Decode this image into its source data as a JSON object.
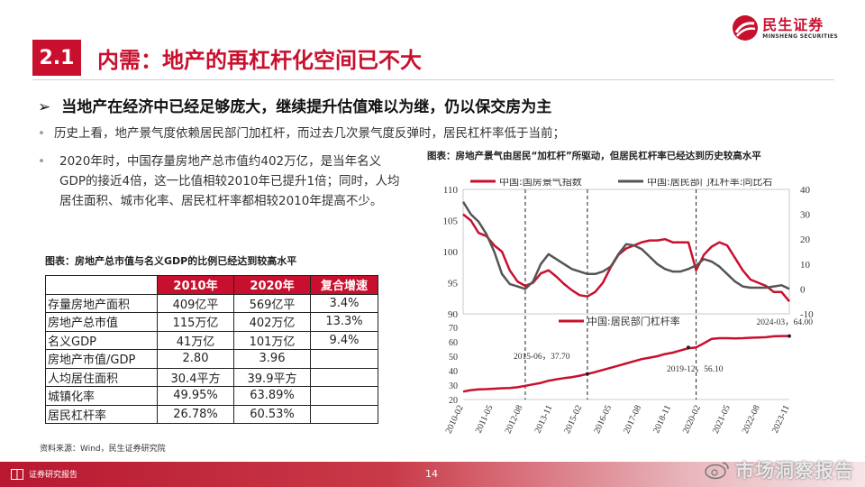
{
  "brand": {
    "name_cn": "民生证券",
    "name_en": "MINSHENG SECURITIES",
    "color": "#c8102e"
  },
  "section": {
    "number": "2.1",
    "title": "内需：地产的再杠杆化空间已不大"
  },
  "lead": {
    "arrow": "➢",
    "text": "当地产在经济中已经足够庞大，继续提升估值难以为继，仍以保交房为主"
  },
  "bullets": [
    {
      "mark": "•",
      "text": "历史上看，地产景气度依赖居民部门加杠杆，而过去几次景气度反弹时，居民杠杆率低于当前；"
    },
    {
      "mark": "•",
      "text": "2020年时，中国存量房地产总市值约402万亿，是当年名义GDP的接近4倍，这一比值相较2010年已提升1倍；同时，人均居住面积、城市化率、居民杠杆率都相较2010年提高不少。"
    }
  ],
  "table": {
    "caption": "图表：房地产总市值与名义GDP的比例已经达到较高水平",
    "headers": [
      "",
      "2010年",
      "2020年",
      "复合增速"
    ],
    "rows": [
      [
        "存量房地产面积",
        "409亿平",
        "569亿平",
        "3.4%"
      ],
      [
        "房地产总市值",
        "115万亿",
        "402万亿",
        "13.3%"
      ],
      [
        "名义GDP",
        "41万亿",
        "101万亿",
        "9.4%"
      ],
      [
        "房地产市值/GDP",
        "2.80",
        "3.96",
        ""
      ],
      [
        "人均居住面积",
        "30.4平方",
        "39.9平方",
        ""
      ],
      [
        "城镇化率",
        "49.95%",
        "63.89%",
        ""
      ],
      [
        "居民杠杆率",
        "26.78%",
        "60.53%",
        ""
      ]
    ],
    "source": "资料来源：Wind，民生证券研究院"
  },
  "chart_caption": "图表：房地产景气由居民“加杠杆”所驱动，但居民杠杆率已经达到历史较高水平",
  "chart_data": [
    {
      "type": "line",
      "x": [
        "2010-02",
        "2010-06",
        "2010-10",
        "2011-02",
        "2011-06",
        "2011-10",
        "2012-02",
        "2012-06",
        "2012-10",
        "2013-02",
        "2013-06",
        "2013-10",
        "2014-02",
        "2014-06",
        "2014-10",
        "2015-02",
        "2015-06",
        "2015-10",
        "2016-02",
        "2016-06",
        "2016-10",
        "2017-02",
        "2017-06",
        "2017-10",
        "2018-02",
        "2018-06",
        "2018-10",
        "2019-02",
        "2019-06",
        "2019-10",
        "2020-02",
        "2020-06",
        "2020-10",
        "2021-02",
        "2021-06",
        "2021-10",
        "2022-02",
        "2022-06",
        "2022-10",
        "2023-02",
        "2023-06",
        "2023-10",
        "2024-02"
      ],
      "series": [
        {
          "name": "中国:国房景气指数",
          "axis": "left",
          "color": "#c8102e",
          "values": [
            106.0,
            105.0,
            103.0,
            102.5,
            101.0,
            100.0,
            97.0,
            95.2,
            94.5,
            95.0,
            96.5,
            97.0,
            96.0,
            94.8,
            93.8,
            93.0,
            92.8,
            93.5,
            95.0,
            97.5,
            99.5,
            100.5,
            101.0,
            101.5,
            101.8,
            101.8,
            102.0,
            101.5,
            101.5,
            101.5,
            97.0,
            99.5,
            100.8,
            101.5,
            101.0,
            99.0,
            97.0,
            95.5,
            95.0,
            94.5,
            93.5,
            93.5,
            92.0
          ]
        },
        {
          "name": "中国:居民部门杠杆率:同比右",
          "axis": "right",
          "color": "#555555",
          "values": [
            35.0,
            30.0,
            27.0,
            22.0,
            15.0,
            6.0,
            2.0,
            1.0,
            0.0,
            3.0,
            10.0,
            14.0,
            12.0,
            10.0,
            8.0,
            7.0,
            6.0,
            6.0,
            7.0,
            9.0,
            14.0,
            18.0,
            17.5,
            16.0,
            13.0,
            10.0,
            8.0,
            7.0,
            7.0,
            8.0,
            9.5,
            12.0,
            11.0,
            9.0,
            6.0,
            3.0,
            1.0,
            0.5,
            0.5,
            0.5,
            1.0,
            1.5,
            0.0
          ]
        }
      ],
      "y_left": {
        "min": 90,
        "max": 110,
        "ticks": [
          90,
          95,
          100,
          105,
          110
        ]
      },
      "y_right": {
        "min": -10,
        "max": 40,
        "ticks": [
          -10,
          0,
          10,
          20,
          30,
          40
        ]
      }
    },
    {
      "type": "line",
      "x": [
        "2010-02",
        "2010-06",
        "2010-10",
        "2011-02",
        "2011-06",
        "2011-10",
        "2012-02",
        "2012-06",
        "2012-10",
        "2013-02",
        "2013-06",
        "2013-10",
        "2014-02",
        "2014-06",
        "2014-10",
        "2015-02",
        "2015-06",
        "2015-10",
        "2016-02",
        "2016-06",
        "2016-10",
        "2017-02",
        "2017-06",
        "2017-10",
        "2018-02",
        "2018-06",
        "2018-10",
        "2019-02",
        "2019-06",
        "2019-10",
        "2020-02",
        "2020-06",
        "2020-10",
        "2021-02",
        "2021-06",
        "2021-10",
        "2022-02",
        "2022-06",
        "2022-10",
        "2023-02",
        "2023-06",
        "2023-10",
        "2024-02"
      ],
      "series": [
        {
          "name": "中国:居民部门杠杆率",
          "color": "#c8102e",
          "values": [
            25.5,
            26.5,
            27.0,
            27.2,
            27.5,
            27.8,
            28.0,
            28.5,
            29.5,
            30.5,
            31.5,
            33.0,
            34.0,
            34.8,
            35.5,
            36.5,
            37.7,
            39.0,
            40.5,
            42.0,
            43.5,
            45.0,
            46.5,
            48.0,
            49.0,
            50.0,
            51.5,
            52.5,
            54.0,
            55.5,
            56.1,
            59.0,
            62.0,
            62.5,
            62.5,
            62.3,
            62.5,
            62.8,
            63.0,
            63.2,
            63.8,
            64.0,
            64.0
          ]
        }
      ],
      "y": {
        "min": 20,
        "max": 70,
        "ticks": [
          20,
          30,
          40,
          50,
          60,
          70
        ]
      },
      "annotations": [
        {
          "label": "2015-06，37.70",
          "x": "2015-06",
          "y": 37.7
        },
        {
          "label": "2019-12，56.10",
          "x": "2019-10",
          "y": 56.1
        },
        {
          "label": "2024-03，64.00",
          "x": "2024-02",
          "y": 64.0
        }
      ],
      "x_tick_labels": [
        "2010-02",
        "2011-05",
        "2012-08",
        "2013-11",
        "2015-02",
        "2016-05",
        "2017-08",
        "2018-11",
        "2020-02",
        "2021-05",
        "2022-08",
        "2023-11"
      ],
      "marker_dates": [
        "2012-10",
        "2015-06",
        "2020-02"
      ]
    }
  ],
  "footer": {
    "label": "证券研究报告",
    "page": "14"
  },
  "watermark": "市场洞察报告"
}
